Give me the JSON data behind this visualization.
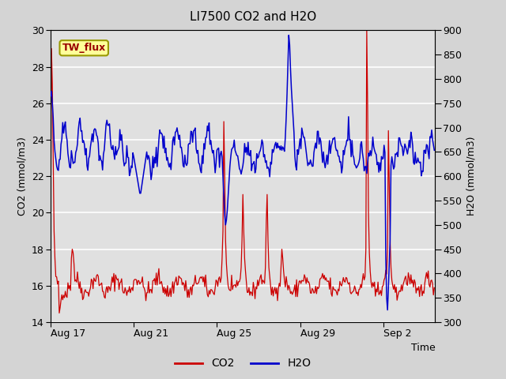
{
  "title": "LI7500 CO2 and H2O",
  "xlabel": "Time",
  "ylabel_left": "CO2 (mmol/m3)",
  "ylabel_right": "H2O (mmol/m3)",
  "ylim_left": [
    14,
    30
  ],
  "ylim_right": [
    300,
    900
  ],
  "yticks_left": [
    14,
    16,
    18,
    20,
    22,
    24,
    26,
    28,
    30
  ],
  "yticks_right": [
    300,
    350,
    400,
    450,
    500,
    550,
    600,
    650,
    700,
    750,
    800,
    850,
    900
  ],
  "xtick_labels": [
    "Aug 17",
    "Aug 21",
    "Aug 25",
    "Aug 29",
    "Sep 2"
  ],
  "co2_color": "#cc0000",
  "h2o_color": "#0000cc",
  "fig_bg_color": "#d4d4d4",
  "plot_bg_color": "#e0e0e0",
  "grid_color": "#ffffff",
  "annotation_text": "TW_flux",
  "annotation_color": "#990000",
  "annotation_bg": "#ffff99",
  "annotation_border": "#999900",
  "legend_co2": "CO2",
  "legend_h2o": "H2O",
  "title_fontsize": 11,
  "axis_fontsize": 9,
  "tick_fontsize": 9,
  "legend_fontsize": 10
}
